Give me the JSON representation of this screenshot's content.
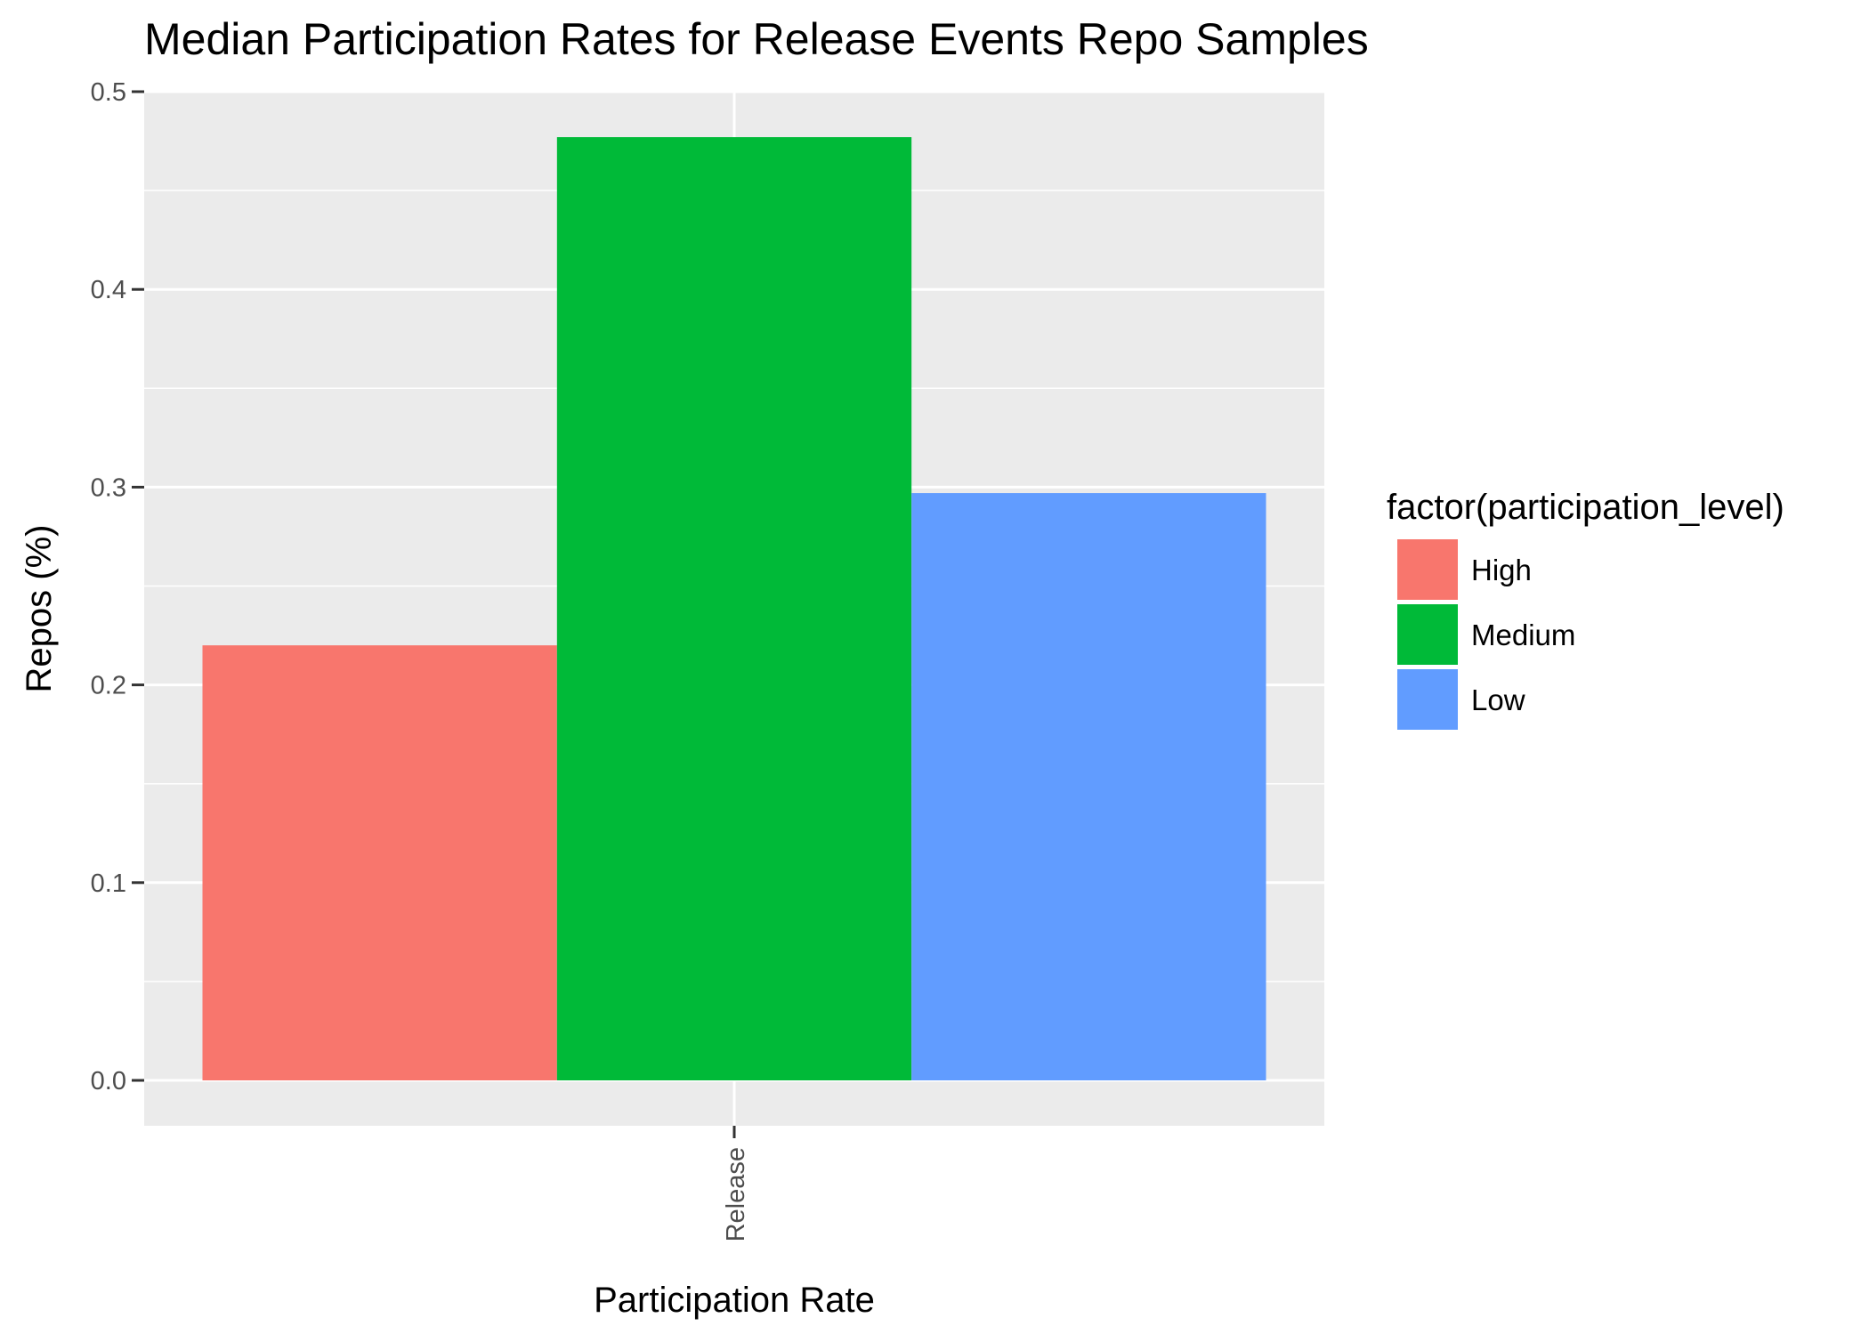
{
  "chart_data": {
    "type": "bar",
    "title": "Median Participation Rates for Release Events Repo Samples",
    "xlabel": "Participation Rate",
    "ylabel": "Repos (%)",
    "categories": [
      "Release"
    ],
    "series": [
      {
        "name": "High",
        "values": [
          0.22
        ],
        "color": "#F8766D"
      },
      {
        "name": "Medium",
        "values": [
          0.477
        ],
        "color": "#00BA38"
      },
      {
        "name": "Low",
        "values": [
          0.297
        ],
        "color": "#619CFF"
      }
    ],
    "ylim": [
      -0.025,
      0.5
    ],
    "yticks": [
      "0.0",
      "0.1",
      "0.2",
      "0.3",
      "0.4",
      "0.5"
    ],
    "grid": true,
    "panel_background": "#EBEBEB",
    "legend": {
      "title": "factor(participation_level)",
      "position": "right"
    }
  }
}
